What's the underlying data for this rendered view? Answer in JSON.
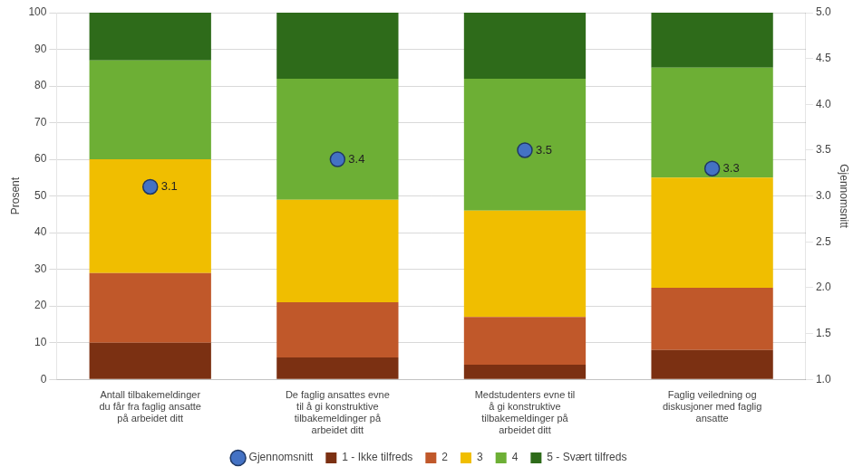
{
  "chart_data": {
    "type": "bar",
    "stacked": true,
    "categories": [
      "Antall tilbakemeldinger\ndu får fra faglig ansatte\npå arbeidet ditt",
      "De faglig ansattes evne\ntil å gi konstruktive\ntilbakemeldinger på\narbeidet ditt",
      "Medstudenters evne til\nå gi konstruktive\ntilbakemeldinger på\narbeidet ditt",
      "Faglig veiledning og\ndiskusjoner med faglig\nansatte"
    ],
    "series": [
      {
        "name": "1 - Ikke tilfreds",
        "color": "#7B3012",
        "values": [
          10,
          6,
          4,
          8
        ]
      },
      {
        "name": "2",
        "color": "#C0582A",
        "values": [
          19,
          15,
          13,
          17
        ]
      },
      {
        "name": "3",
        "color": "#F0BE00",
        "values": [
          31,
          28,
          29,
          30
        ]
      },
      {
        "name": "4",
        "color": "#6DAF35",
        "values": [
          27,
          33,
          36,
          30
        ]
      },
      {
        "name": "5 - Svært tilfreds",
        "color": "#2E6B1A",
        "values": [
          13,
          18,
          18,
          15
        ]
      },
      {
        "name": "Gjennomsnitt",
        "type": "scatter",
        "axis": "y2",
        "color": "#4472C4",
        "marker": "circle",
        "data_labels": true,
        "values": [
          3.1,
          3.4,
          3.5,
          3.3
        ]
      }
    ],
    "ylabel": "Prosent",
    "y2label": "Gjennomsnitt",
    "ylim": [
      0,
      100
    ],
    "yticks": [
      0,
      10,
      20,
      30,
      40,
      50,
      60,
      70,
      80,
      90,
      100
    ],
    "y2lim": [
      1,
      5
    ],
    "y2ticks": [
      {
        "value": 1,
        "label": "1.0"
      },
      1.5,
      {
        "value": 2,
        "label": "2.0"
      },
      2.5,
      {
        "value": 3,
        "label": "3.0"
      },
      3.5,
      {
        "value": 4,
        "label": "4.0"
      },
      4.5,
      {
        "value": 5,
        "label": "5.0"
      }
    ],
    "grid": true,
    "legend": "bottom"
  }
}
